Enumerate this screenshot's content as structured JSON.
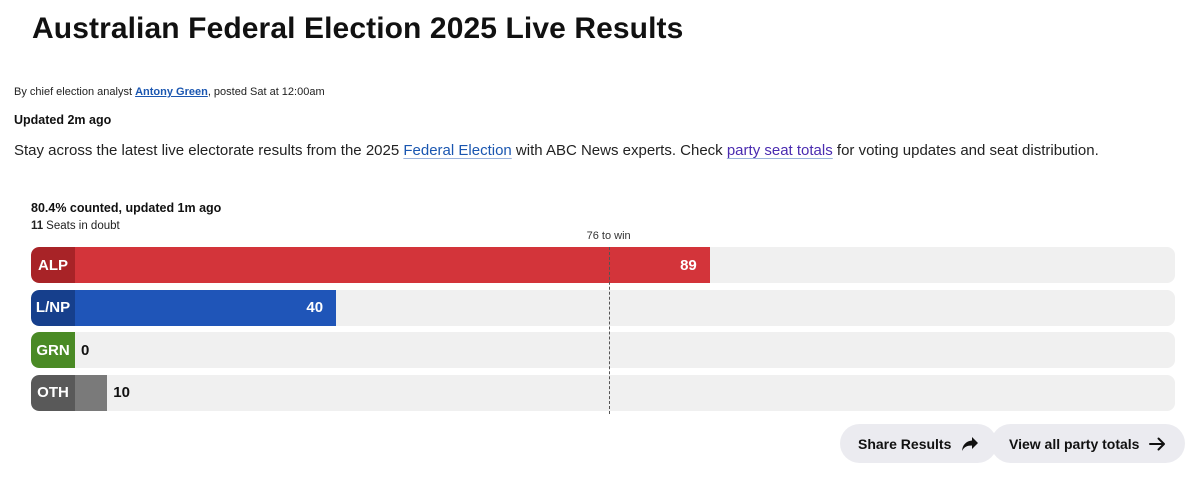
{
  "title": "Australian Federal Election 2025 Live Results",
  "byline": {
    "prefix": "By chief election analyst ",
    "author": "Antony Green",
    "suffix": ", posted Sat at  12:00am"
  },
  "updated": "Updated 2m ago",
  "intro": {
    "part1": "Stay across the latest live electorate results from the 2025 ",
    "link1": "Federal Election",
    "part2": " with ABC News experts. Check ",
    "link2": "party seat totals",
    "part3": " for voting updates and seat distribution."
  },
  "counted": "80.4% counted, updated  1m ago",
  "doubt": {
    "count": "11",
    "label": "Seats in doubt"
  },
  "chart_data": {
    "type": "bar",
    "orientation": "horizontal",
    "categories": [
      "ALP",
      "L/NP",
      "GRN",
      "OTH"
    ],
    "values": [
      89,
      40,
      0,
      10
    ],
    "xlim": [
      0,
      150
    ],
    "reference_line": {
      "value": 76,
      "label": "76 to win"
    },
    "colors": {
      "ALP": {
        "bar": "#d3343a",
        "badge": "#a82327"
      },
      "L/NP": {
        "bar": "#1f55b8",
        "badge": "#163f8c"
      },
      "GRN": {
        "bar": "#54912c",
        "badge": "#4a8a25"
      },
      "OTH": {
        "bar": "#7a7a7a",
        "badge": "#595959"
      }
    }
  },
  "buttons": {
    "share": "Share Results",
    "view_all": "View all party totals"
  }
}
